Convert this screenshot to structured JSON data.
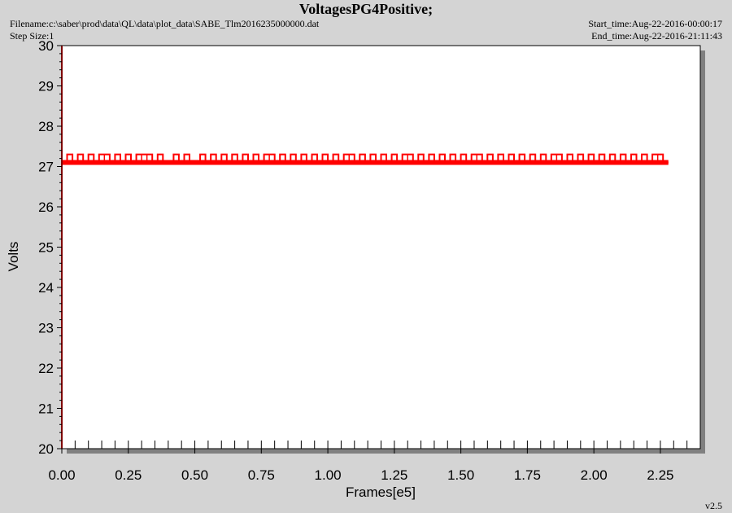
{
  "header": {
    "title": "VoltagesPG4Positive;",
    "filename": "Filename:c:\\saber\\prod\\data\\QL\\data\\plot_data\\SABE_Tlm2016235000000.dat",
    "step_size": "Step Size:1",
    "start_time": "Start_time:Aug-22-2016-00:00:17",
    "end_time": "End_time:Aug-22-2016-21:11:43"
  },
  "footer": {
    "version": "v2.5"
  },
  "colors": {
    "background": "#d4d4d4",
    "plot_area": "#ffffff",
    "series": "#ff0000",
    "axis": "#000000"
  },
  "chart_data": {
    "type": "line",
    "xlabel": "Frames[e5]",
    "ylabel": "Volts",
    "xlim": [
      0,
      2.4
    ],
    "ylim": [
      20,
      30
    ],
    "x_ticks": [
      "0.00",
      "0.25",
      "0.50",
      "0.75",
      "1.00",
      "1.25",
      "1.50",
      "1.75",
      "2.00",
      "2.25"
    ],
    "y_ticks": [
      "20",
      "21",
      "22",
      "23",
      "24",
      "25",
      "26",
      "27",
      "28",
      "29",
      "30"
    ],
    "grid": false,
    "series": [
      {
        "color": "#ff0000",
        "x_range": [
          0,
          2.28
        ],
        "baseline_value": 27.1,
        "upper_value": 27.3,
        "description_values": [
          27.1,
          27.3
        ],
        "x": [
          0.0,
          0.02,
          0.04,
          0.06,
          0.08,
          0.1,
          0.12,
          0.14,
          0.16,
          0.18,
          0.2,
          0.22,
          0.24,
          0.26,
          0.28,
          0.3,
          0.32,
          0.34,
          0.36,
          0.38,
          0.4,
          0.42,
          0.44,
          0.46,
          0.48,
          0.5,
          0.52,
          0.54,
          0.56,
          0.58,
          0.6,
          0.62,
          0.64,
          0.66,
          0.68,
          0.7,
          0.72,
          0.74,
          0.76,
          0.78,
          0.8,
          0.82,
          0.84,
          0.86,
          0.88,
          0.9,
          0.92,
          0.94,
          0.96,
          0.98,
          1.0,
          1.02,
          1.04,
          1.06,
          1.08,
          1.1,
          1.12,
          1.14,
          1.16,
          1.18,
          1.2,
          1.22,
          1.24,
          1.26,
          1.28,
          1.3,
          1.32,
          1.34,
          1.36,
          1.38,
          1.4,
          1.42,
          1.44,
          1.46,
          1.48,
          1.5,
          1.52,
          1.54,
          1.56,
          1.58,
          1.6,
          1.62,
          1.64,
          1.66,
          1.68,
          1.7,
          1.72,
          1.74,
          1.76,
          1.78,
          1.8,
          1.82,
          1.84,
          1.86,
          1.88,
          1.9,
          1.92,
          1.94,
          1.96,
          1.98,
          2.0,
          2.02,
          2.04,
          2.06,
          2.08,
          2.1,
          2.12,
          2.14,
          2.16,
          2.18,
          2.2,
          2.22,
          2.24,
          2.26,
          2.28
        ],
        "y": [
          27.1,
          27.3,
          27.1,
          27.3,
          27.1,
          27.3,
          27.1,
          27.3,
          27.3,
          27.1,
          27.3,
          27.1,
          27.3,
          27.1,
          27.3,
          27.3,
          27.3,
          27.1,
          27.3,
          27.1,
          27.1,
          27.3,
          27.1,
          27.3,
          27.1,
          27.1,
          27.3,
          27.1,
          27.3,
          27.1,
          27.3,
          27.1,
          27.3,
          27.1,
          27.3,
          27.1,
          27.3,
          27.1,
          27.3,
          27.3,
          27.1,
          27.3,
          27.1,
          27.3,
          27.1,
          27.3,
          27.1,
          27.3,
          27.1,
          27.3,
          27.1,
          27.3,
          27.1,
          27.3,
          27.3,
          27.1,
          27.3,
          27.1,
          27.3,
          27.1,
          27.3,
          27.1,
          27.3,
          27.1,
          27.3,
          27.3,
          27.1,
          27.3,
          27.1,
          27.3,
          27.1,
          27.3,
          27.1,
          27.3,
          27.1,
          27.3,
          27.1,
          27.3,
          27.3,
          27.1,
          27.3,
          27.1,
          27.3,
          27.1,
          27.3,
          27.1,
          27.3,
          27.1,
          27.3,
          27.1,
          27.3,
          27.1,
          27.3,
          27.3,
          27.1,
          27.3,
          27.1,
          27.3,
          27.1,
          27.3,
          27.1,
          27.3,
          27.1,
          27.3,
          27.1,
          27.3,
          27.1,
          27.3,
          27.1,
          27.3,
          27.1,
          27.3,
          27.3,
          27.1,
          27.1
        ]
      }
    ]
  }
}
